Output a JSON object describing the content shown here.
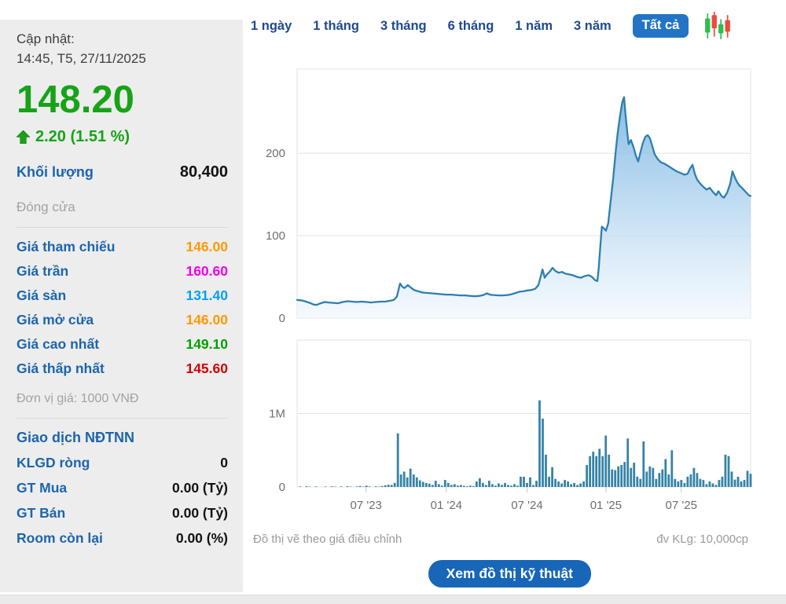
{
  "sidebar": {
    "updated_label": "Cập nhật:",
    "updated_time": "14:45, T5, 27/11/2025",
    "price": "148.20",
    "change": "2.20 (1.51 %)",
    "price_color": "#17a317",
    "volume_label": "Khối lượng",
    "volume_value": "80,400",
    "session_status": "Đóng cửa",
    "price_rows": [
      {
        "label": "Giá tham chiếu",
        "value": "146.00",
        "color": "#ff9900"
      },
      {
        "label": "Giá trần",
        "value": "160.60",
        "color": "#ee00ee"
      },
      {
        "label": "Giá sàn",
        "value": "131.40",
        "color": "#00a0f0"
      },
      {
        "label": "Giá mở cửa",
        "value": "146.00",
        "color": "#ff9900"
      },
      {
        "label": "Giá cao nhất",
        "value": "149.10",
        "color": "#00a000"
      },
      {
        "label": "Giá thấp nhất",
        "value": "145.60",
        "color": "#d40000"
      }
    ],
    "unit_note": "Đơn vị giá: 1000 VNĐ",
    "foreign_section": {
      "title": "Giao dịch NĐTNN",
      "rows": [
        {
          "label": "KLGD ròng",
          "value": "0"
        },
        {
          "label": "GT Mua",
          "value": "0.00 (Tỷ)"
        },
        {
          "label": "GT Bán",
          "value": "0.00 (Tỷ)"
        },
        {
          "label": "Room còn lại",
          "value": "0.00 (%)"
        }
      ]
    }
  },
  "toolbar": {
    "ranges": [
      "1 ngày",
      "1 tháng",
      "3 tháng",
      "6 tháng",
      "1 năm",
      "3 năm",
      "Tất cả"
    ],
    "active_range": "Tất cả"
  },
  "footer": {
    "note_left": "Đồ thị vẽ theo giá điều chỉnh",
    "note_right": "đv KLg: 10,000cp",
    "button": "Xem đồ thị kỹ thuật"
  },
  "colors": {
    "line": "#2e7fae",
    "area_top": "#68acdc",
    "area_mid": "#aed2ee",
    "area_bottom": "#eef6fc",
    "bar": "#3583a6",
    "grid": "#e3e3e3",
    "axis_text": "#6e6e6e",
    "tick": "#c9c9c9",
    "accent_blue": "#2374c4",
    "candle_green": "#2dbe4e",
    "candle_red": "#e74c3c"
  },
  "chart_data": [
    {
      "type": "area",
      "name": "adjusted-price",
      "ylim": [
        0,
        302
      ],
      "yticks": [
        {
          "v": 0,
          "label": "0"
        },
        {
          "v": 100,
          "label": "100"
        },
        {
          "v": 200,
          "label": "200"
        }
      ],
      "xticks": [
        {
          "pos": 0.152,
          "label": "07 '23"
        },
        {
          "pos": 0.329,
          "label": "01 '24"
        },
        {
          "pos": 0.507,
          "label": "07 '24"
        },
        {
          "pos": 0.681,
          "label": "01 '25"
        },
        {
          "pos": 0.847,
          "label": "07 '25"
        }
      ],
      "points": [
        [
          0.0,
          22
        ],
        [
          0.009,
          21.5
        ],
        [
          0.017,
          20.5
        ],
        [
          0.028,
          18.5
        ],
        [
          0.036,
          16.5
        ],
        [
          0.043,
          16
        ],
        [
          0.052,
          18
        ],
        [
          0.061,
          19.5
        ],
        [
          0.069,
          19
        ],
        [
          0.08,
          18.5
        ],
        [
          0.09,
          18
        ],
        [
          0.101,
          19.5
        ],
        [
          0.111,
          20.5
        ],
        [
          0.121,
          20
        ],
        [
          0.132,
          19.5
        ],
        [
          0.142,
          20
        ],
        [
          0.153,
          19.5
        ],
        [
          0.163,
          19
        ],
        [
          0.173,
          19.5
        ],
        [
          0.184,
          20
        ],
        [
          0.194,
          20
        ],
        [
          0.204,
          21
        ],
        [
          0.213,
          22
        ],
        [
          0.22,
          26
        ],
        [
          0.227,
          42
        ],
        [
          0.232,
          38
        ],
        [
          0.237,
          36.5
        ],
        [
          0.244,
          40
        ],
        [
          0.251,
          37
        ],
        [
          0.258,
          34
        ],
        [
          0.267,
          32.5
        ],
        [
          0.277,
          31
        ],
        [
          0.288,
          30.5
        ],
        [
          0.298,
          30
        ],
        [
          0.308,
          29.5
        ],
        [
          0.319,
          29
        ],
        [
          0.329,
          28.5
        ],
        [
          0.34,
          28.5
        ],
        [
          0.35,
          28
        ],
        [
          0.36,
          27.5
        ],
        [
          0.371,
          27.5
        ],
        [
          0.381,
          27
        ],
        [
          0.392,
          26.5
        ],
        [
          0.402,
          27
        ],
        [
          0.411,
          28
        ],
        [
          0.418,
          30
        ],
        [
          0.425,
          28.5
        ],
        [
          0.433,
          28
        ],
        [
          0.444,
          27.5
        ],
        [
          0.454,
          27.5
        ],
        [
          0.464,
          28
        ],
        [
          0.473,
          29
        ],
        [
          0.482,
          30.5
        ],
        [
          0.49,
          32
        ],
        [
          0.499,
          32.5
        ],
        [
          0.508,
          33.5
        ],
        [
          0.516,
          34
        ],
        [
          0.525,
          35.5
        ],
        [
          0.532,
          40
        ],
        [
          0.537,
          50
        ],
        [
          0.541,
          59
        ],
        [
          0.546,
          49
        ],
        [
          0.551,
          53
        ],
        [
          0.558,
          57
        ],
        [
          0.563,
          61
        ],
        [
          0.57,
          57
        ],
        [
          0.577,
          55
        ],
        [
          0.584,
          56
        ],
        [
          0.591,
          54
        ],
        [
          0.6,
          53
        ],
        [
          0.608,
          52
        ],
        [
          0.617,
          50
        ],
        [
          0.626,
          49
        ],
        [
          0.634,
          51
        ],
        [
          0.643,
          52
        ],
        [
          0.65,
          50
        ],
        [
          0.657,
          46
        ],
        [
          0.662,
          45
        ],
        [
          0.665,
          60
        ],
        [
          0.669,
          90
        ],
        [
          0.672,
          111
        ],
        [
          0.678,
          108
        ],
        [
          0.681,
          106
        ],
        [
          0.686,
          115
        ],
        [
          0.691,
          140
        ],
        [
          0.697,
          170
        ],
        [
          0.702,
          200
        ],
        [
          0.707,
          225
        ],
        [
          0.712,
          245
        ],
        [
          0.717,
          262
        ],
        [
          0.721,
          268
        ],
        [
          0.724,
          248
        ],
        [
          0.728,
          225
        ],
        [
          0.731,
          211
        ],
        [
          0.736,
          216
        ],
        [
          0.742,
          207
        ],
        [
          0.747,
          197
        ],
        [
          0.752,
          190
        ],
        [
          0.757,
          201
        ],
        [
          0.762,
          212
        ],
        [
          0.768,
          220
        ],
        [
          0.773,
          222
        ],
        [
          0.778,
          218
        ],
        [
          0.783,
          209
        ],
        [
          0.788,
          199
        ],
        [
          0.795,
          193
        ],
        [
          0.802,
          189
        ],
        [
          0.811,
          187
        ],
        [
          0.82,
          184
        ],
        [
          0.828,
          181
        ],
        [
          0.837,
          178
        ],
        [
          0.846,
          176
        ],
        [
          0.854,
          174
        ],
        [
          0.861,
          175
        ],
        [
          0.866,
          181
        ],
        [
          0.872,
          186
        ],
        [
          0.877,
          175
        ],
        [
          0.882,
          168
        ],
        [
          0.889,
          163
        ],
        [
          0.896,
          159
        ],
        [
          0.903,
          156
        ],
        [
          0.91,
          158
        ],
        [
          0.917,
          153
        ],
        [
          0.924,
          149
        ],
        [
          0.929,
          154
        ],
        [
          0.936,
          148
        ],
        [
          0.941,
          146
        ],
        [
          0.948,
          152
        ],
        [
          0.955,
          163
        ],
        [
          0.96,
          178
        ],
        [
          0.965,
          171
        ],
        [
          0.97,
          165
        ],
        [
          0.975,
          161
        ],
        [
          0.981,
          158
        ],
        [
          0.986,
          155
        ],
        [
          0.991,
          152
        ],
        [
          0.996,
          149
        ],
        [
          1.0,
          148
        ]
      ]
    },
    {
      "type": "bar",
      "name": "volume",
      "unit": "M",
      "ylim": [
        0,
        2
      ],
      "yticks": [
        {
          "v": 0,
          "label": "0"
        },
        {
          "v": 1,
          "label": "1M"
        }
      ],
      "values": [
        0.004,
        0.008,
        0.004,
        0.01,
        0.005,
        0.004,
        0.008,
        0.004,
        0.003,
        0.006,
        0.004,
        0.009,
        0.005,
        0.003,
        0.007,
        0.004,
        0.011,
        0.005,
        0.003,
        0.007,
        0.013,
        0.005,
        0.018,
        0.007,
        0.004,
        0.009,
        0.005,
        0.013,
        0.022,
        0.03,
        0.028,
        0.055,
        0.73,
        0.17,
        0.21,
        0.13,
        0.25,
        0.17,
        0.13,
        0.09,
        0.07,
        0.055,
        0.045,
        0.028,
        0.085,
        0.038,
        0.018,
        0.095,
        0.055,
        0.028,
        0.038,
        0.018,
        0.028,
        0.015,
        0.01,
        0.018,
        0.012,
        0.075,
        0.12,
        0.055,
        0.028,
        0.085,
        0.038,
        0.018,
        0.048,
        0.028,
        0.055,
        0.028,
        0.018,
        0.038,
        0.018,
        0.14,
        0.14,
        0.055,
        0.13,
        0.028,
        0.085,
        1.18,
        0.93,
        0.44,
        0.14,
        0.27,
        0.11,
        0.075,
        0.048,
        0.095,
        0.075,
        0.038,
        0.055,
        0.028,
        0.048,
        0.075,
        0.3,
        0.42,
        0.48,
        0.42,
        0.52,
        0.42,
        0.7,
        0.44,
        0.24,
        0.23,
        0.28,
        0.3,
        0.34,
        0.66,
        0.26,
        0.33,
        0.14,
        0.11,
        0.62,
        0.21,
        0.28,
        0.26,
        0.11,
        0.19,
        0.24,
        0.38,
        0.17,
        0.5,
        0.11,
        0.075,
        0.095,
        0.055,
        0.14,
        0.17,
        0.26,
        0.19,
        0.11,
        0.095,
        0.038,
        0.075,
        0.048,
        0.028,
        0.095,
        0.14,
        0.44,
        0.42,
        0.21,
        0.1,
        0.14,
        0.075,
        0.095,
        0.22,
        0.18
      ]
    }
  ]
}
